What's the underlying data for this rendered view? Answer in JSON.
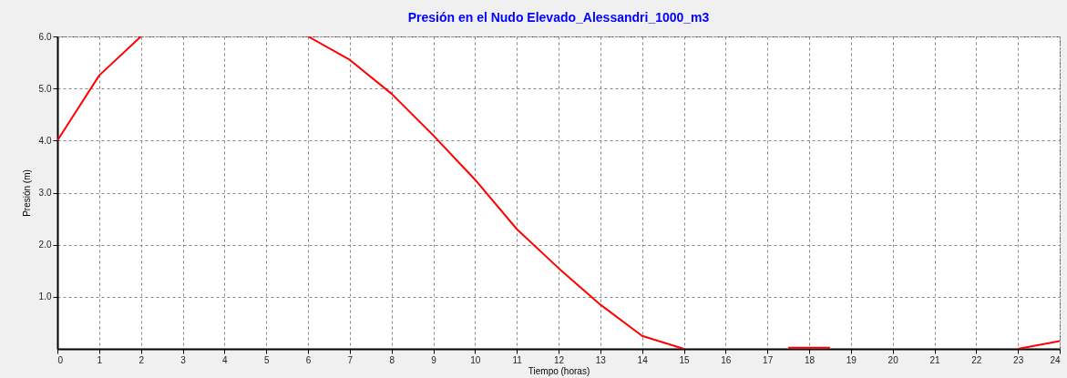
{
  "chart_data": {
    "type": "line",
    "title": "Presión en el Nudo Elevado_Alessandri_1000_m3",
    "xlabel": "Tiempo (horas)",
    "ylabel": "Presión (m)",
    "x": [
      0,
      1,
      2,
      3,
      4,
      5,
      6,
      7,
      8,
      9,
      10,
      11,
      12,
      13,
      14,
      15,
      16,
      17,
      17.5,
      18,
      18.5,
      19,
      20,
      21,
      22,
      23,
      24
    ],
    "series": [
      {
        "color": "#ff0000",
        "values": [
          4.0,
          5.25,
          6.0,
          null,
          null,
          null,
          6.0,
          5.55,
          4.9,
          4.1,
          3.25,
          2.3,
          1.55,
          0.85,
          0.25,
          0.0,
          null,
          null,
          0.02,
          0.02,
          0.02,
          null,
          null,
          null,
          null,
          0.0,
          0.15
        ]
      }
    ],
    "xlim": [
      0,
      24
    ],
    "xticks": [
      0,
      1,
      2,
      3,
      4,
      5,
      6,
      7,
      8,
      9,
      10,
      11,
      12,
      13,
      14,
      15,
      16,
      17,
      18,
      19,
      20,
      21,
      22,
      23,
      24
    ],
    "ylim": [
      0,
      6
    ],
    "yticks": [
      {
        "value": 1,
        "label": "1.0"
      },
      {
        "value": 2,
        "label": "2.0"
      },
      {
        "value": 3,
        "label": "3.0"
      },
      {
        "value": 4,
        "label": "4.0"
      },
      {
        "value": 5,
        "label": "5.0"
      },
      {
        "value": 6,
        "label": "6.0"
      }
    ],
    "grid": true,
    "line_style": "solid",
    "marker": "none"
  }
}
